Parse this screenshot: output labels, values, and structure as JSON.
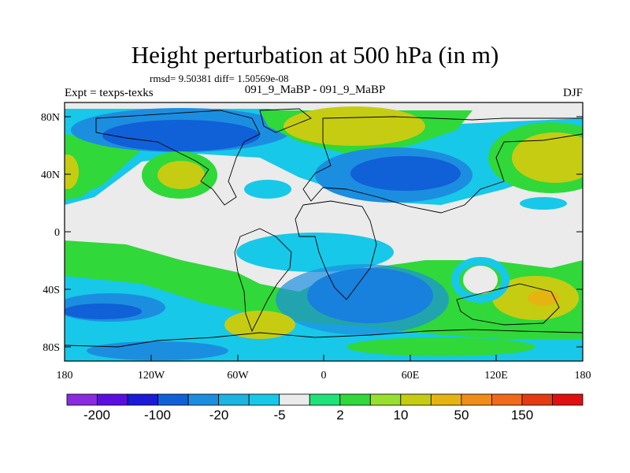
{
  "title": "Height perturbation at 500 hPa (in m)",
  "stats": "rmsd= 9.50381 diff= 1.50569e-08",
  "experiment": "Expt = texps-texks",
  "cases": "091_9_MaBP - 091_9_MaBP",
  "season": "DJF",
  "axes": {
    "lat_labels": [
      "80N",
      "40N",
      "0",
      "40S",
      "80S"
    ],
    "lon_labels": [
      "180",
      "120W",
      "60W",
      "0",
      "60E",
      "120E",
      "180"
    ]
  },
  "colorbar": {
    "labels": [
      "-200",
      "-100",
      "-20",
      "-5",
      "2",
      "10",
      "50",
      "150"
    ],
    "colors": [
      "#8a2be2",
      "#5a0fe0",
      "#1a1ad8",
      "#1060d8",
      "#1c8ee0",
      "#1cb4e0",
      "#17c8e8",
      "#ebebeb",
      "#1ee27a",
      "#30d83a",
      "#98e030",
      "#c6cc12",
      "#e6b410",
      "#f08c18",
      "#f06a1a",
      "#e63a12",
      "#e01010"
    ]
  },
  "map_colors": {
    "neutral": "#ebebeb",
    "light_blue": "#17c8e8",
    "mid_blue": "#1cb4e0",
    "blue": "#1c8ee0",
    "dark_blue": "#1060d8",
    "deep_blue": "#1a1ad8",
    "green": "#30d83a",
    "yellow_green": "#98e030",
    "olive": "#c6cc12",
    "orange": "#e6b410"
  }
}
